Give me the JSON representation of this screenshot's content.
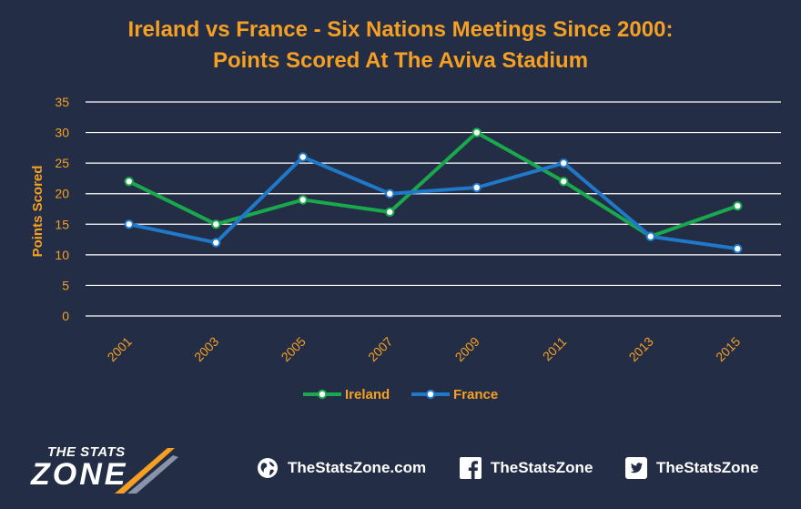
{
  "chart_data": {
    "type": "line",
    "title": [
      "Ireland vs France - Six Nations Meetings Since 2000:",
      "Points Scored At The Aviva Stadium"
    ],
    "ylabel": "Points Scored",
    "xlabel": "",
    "categories": [
      "2001",
      "2003",
      "2005",
      "2007",
      "2009",
      "2011",
      "2013",
      "2015"
    ],
    "ylim": [
      0,
      35
    ],
    "yticks": [
      0,
      5,
      10,
      15,
      20,
      25,
      30,
      35
    ],
    "grid": true,
    "legend_position": "bottom",
    "series": [
      {
        "name": "Ireland",
        "color": "#1aa84c",
        "values": [
          22,
          15,
          19,
          17,
          30,
          22,
          13,
          18
        ]
      },
      {
        "name": "France",
        "color": "#1f78c8",
        "values": [
          15,
          12,
          26,
          20,
          21,
          25,
          13,
          11
        ]
      }
    ]
  },
  "colors": {
    "background": "#232d45",
    "text_accent": "#f5a023",
    "grid": "#ffffff"
  },
  "footer": {
    "logo_line1": "THE STATS",
    "logo_line2": "ZONE",
    "website": "TheStatsZone.com",
    "facebook": "TheStatsZone",
    "twitter": "TheStatsZone",
    "icons": [
      "globe-icon",
      "facebook-icon",
      "twitter-icon"
    ]
  }
}
